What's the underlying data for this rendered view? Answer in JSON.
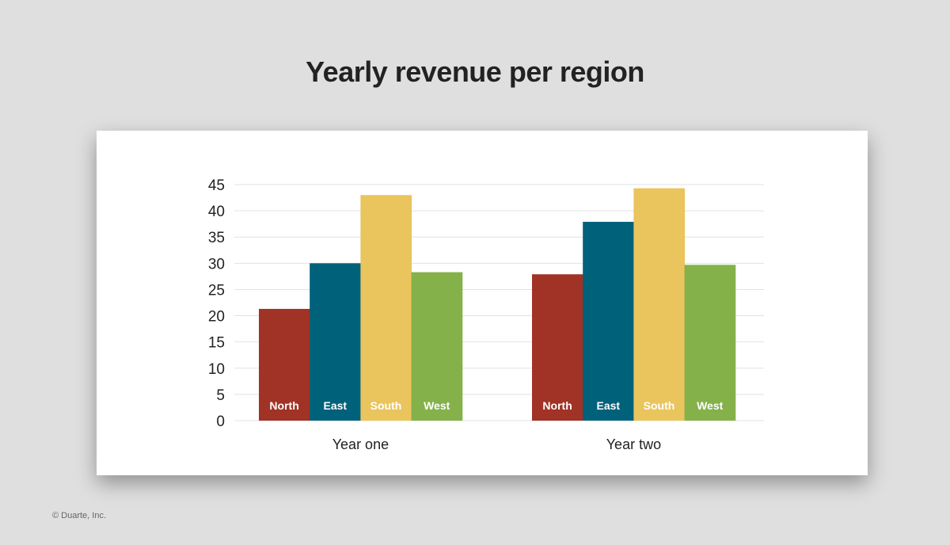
{
  "chart_data": {
    "type": "bar",
    "title": "Yearly revenue per region",
    "categories": [
      "Year one",
      "Year two"
    ],
    "series": [
      {
        "name": "North",
        "color": "#a03325",
        "values": [
          21.3,
          27.9
        ]
      },
      {
        "name": "East",
        "color": "#00627a",
        "values": [
          30,
          37.9
        ]
      },
      {
        "name": "South",
        "color": "#eac45c",
        "values": [
          43,
          44.3
        ]
      },
      {
        "name": "West",
        "color": "#84b14a",
        "values": [
          28.3,
          29.7
        ]
      }
    ],
    "xlabel": "",
    "ylabel": "",
    "ylim": [
      0,
      45
    ],
    "yticks": [
      "0",
      "5",
      "10",
      "15",
      "20",
      "25",
      "30",
      "35",
      "40",
      "45"
    ],
    "grid": true,
    "legend": "labels inside bar bases"
  },
  "footer": {
    "credit": "© Duarte, Inc."
  }
}
